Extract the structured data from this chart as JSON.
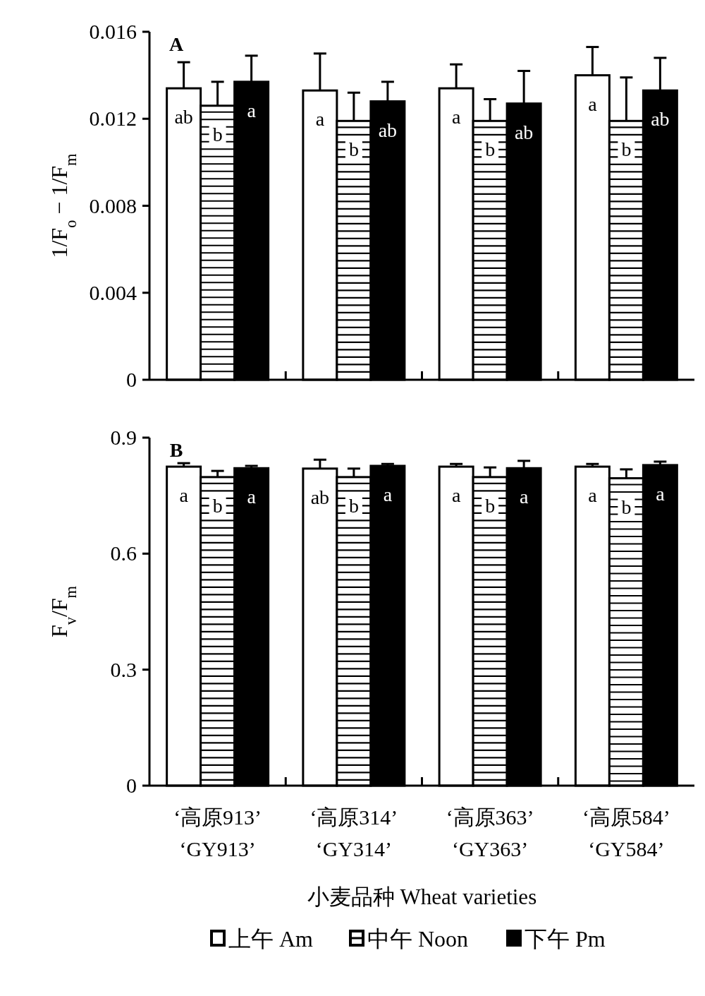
{
  "chart_data": [
    {
      "type": "bar",
      "title": "A",
      "ylabel": "1/F$_{o}$ − 1/F$_{m}$",
      "categories": [
        null,
        null,
        null,
        null
      ],
      "series": [
        {
          "color": "#ffffff",
          "values": [
            0.0134,
            0.0133,
            0.0134,
            0.014
          ],
          "errors": [
            0.0012,
            0.0017,
            0.0011,
            0.0013
          ],
          "value_labels": [
            "ab",
            "a",
            "a",
            "a"
          ]
        },
        {
          "color": "#ffffff",
          "values": [
            0.0126,
            0.0119,
            0.0119,
            0.0119
          ],
          "errors": [
            0.0011,
            0.0013,
            0.001,
            0.002
          ],
          "value_labels": [
            "b",
            "b",
            "b",
            "b"
          ]
        },
        {
          "color": "#000000",
          "values": [
            0.0137,
            0.0128,
            0.0127,
            0.0133
          ],
          "errors": [
            0.0012,
            0.0009,
            0.0015,
            0.0015
          ],
          "value_labels": [
            "a",
            "ab",
            "ab",
            "ab"
          ]
        }
      ],
      "ylim": [
        0,
        0.016
      ],
      "yticks": [
        0,
        0.004,
        0.008,
        0.012,
        0.016
      ],
      "legend": false,
      "grid": false
    },
    {
      "type": "bar",
      "title": "B",
      "ylabel": "F$_{v}$/F$_{m}$",
      "xlabel": "小麦品种  Wheat varieties",
      "categories": [
        "‘高原913’\n‘GY913’",
        "‘高原314’\n‘GY314’",
        "‘高原363’\n‘GY363’",
        "‘高原584’\n‘GY584’"
      ],
      "series": [
        {
          "name": "上午 Am",
          "color": "#ffffff",
          "values": [
            0.825,
            0.82,
            0.825,
            0.825
          ],
          "errors": [
            0.009,
            0.023,
            0.007,
            0.007
          ],
          "value_labels": [
            "a",
            "ab",
            "a",
            "a"
          ]
        },
        {
          "name": "中午 Noon",
          "color": "#ffffff",
          "values": [
            0.798,
            0.798,
            0.798,
            0.795
          ],
          "errors": [
            0.016,
            0.022,
            0.025,
            0.023
          ],
          "value_labels": [
            "b",
            "b",
            "b",
            "b"
          ]
        },
        {
          "name": "下午 Pm",
          "color": "#000000",
          "values": [
            0.821,
            0.827,
            0.821,
            0.829
          ],
          "errors": [
            0.006,
            0.005,
            0.019,
            0.009
          ],
          "value_labels": [
            "a",
            "a",
            "a",
            "a"
          ]
        }
      ],
      "ylim": [
        0,
        0.9
      ],
      "yticks": [
        0,
        0.3,
        0.6,
        0.9
      ],
      "legend": "bottom",
      "grid": false
    }
  ]
}
